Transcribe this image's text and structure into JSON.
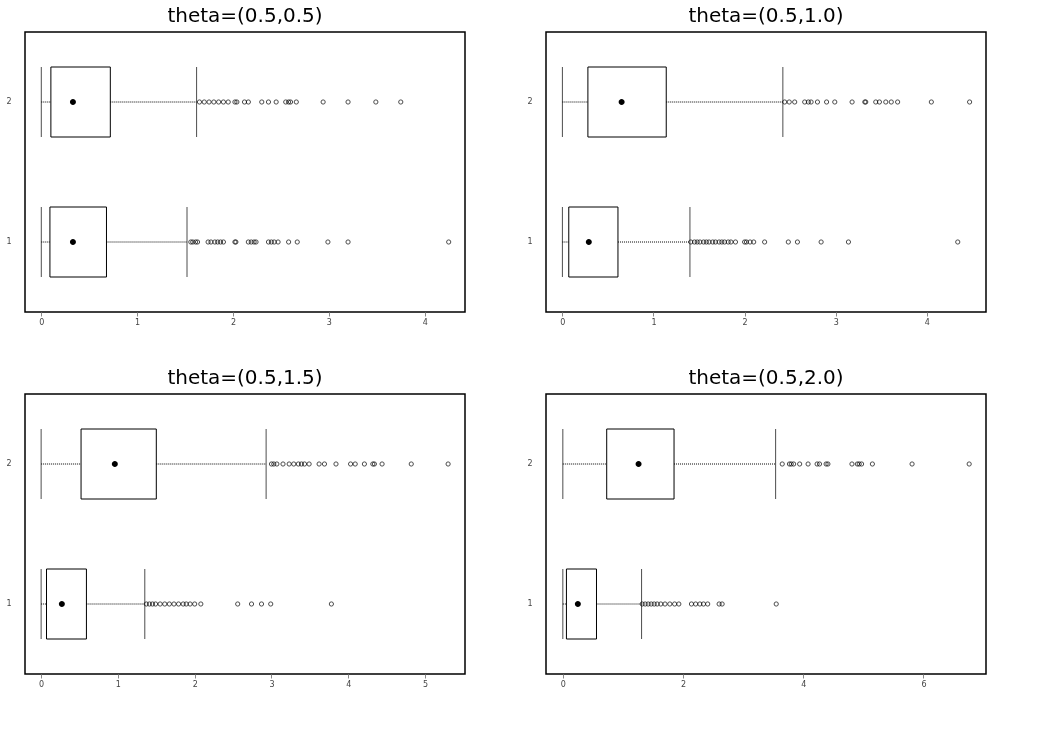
{
  "chart_data": [
    {
      "type": "box",
      "title": "theta=(0.5,0.5)",
      "orientation": "horizontal",
      "categories": [
        "2",
        "1"
      ],
      "xlim": [
        -0.17,
        4.42
      ],
      "xticks": [
        0,
        1,
        2,
        3,
        4
      ],
      "boxes": [
        {
          "low": 0,
          "q1": 0.1,
          "median": 0.33,
          "q3": 0.72,
          "high": 1.62,
          "outliers": [
            1.65,
            1.7,
            1.75,
            1.8,
            1.85,
            1.9,
            1.95,
            2.02,
            2.04,
            2.12,
            2.16,
            2.3,
            2.37,
            2.45,
            2.55,
            2.58,
            2.6,
            2.66,
            2.94,
            3.2,
            3.49,
            3.75
          ]
        },
        {
          "low": 0,
          "q1": 0.09,
          "median": 0.33,
          "q3": 0.68,
          "high": 1.52,
          "outliers": [
            1.56,
            1.58,
            1.61,
            1.63,
            1.74,
            1.77,
            1.81,
            1.84,
            1.87,
            1.9,
            2.02,
            2.03,
            2.16,
            2.19,
            2.22,
            2.24,
            2.37,
            2.4,
            2.43,
            2.47,
            2.58,
            2.67,
            2.99,
            3.2,
            4.25
          ]
        }
      ]
    },
    {
      "type": "box",
      "title": "theta=(0.5,1.0)",
      "orientation": "horizontal",
      "categories": [
        "2",
        "1"
      ],
      "xlim": [
        -0.18,
        4.65
      ],
      "xticks": [
        0,
        1,
        2,
        3,
        4
      ],
      "boxes": [
        {
          "low": 0,
          "q1": 0.28,
          "median": 0.65,
          "q3": 1.14,
          "high": 2.42,
          "outliers": [
            2.44,
            2.49,
            2.55,
            2.66,
            2.7,
            2.73,
            2.8,
            2.9,
            2.99,
            3.18,
            3.32,
            3.33,
            3.44,
            3.48,
            3.55,
            3.61,
            3.68,
            4.05,
            4.47
          ]
        },
        {
          "low": 0,
          "q1": 0.07,
          "median": 0.29,
          "q3": 0.61,
          "high": 1.4,
          "outliers": [
            1.41,
            1.45,
            1.48,
            1.51,
            1.55,
            1.58,
            1.61,
            1.65,
            1.68,
            1.72,
            1.75,
            1.78,
            1.82,
            1.85,
            1.9,
            2,
            2.02,
            2.06,
            2.1,
            2.22,
            2.48,
            2.58,
            2.84,
            3.14,
            4.34
          ]
        }
      ]
    },
    {
      "type": "box",
      "title": "theta=(0.5,1.5)",
      "orientation": "horizontal",
      "categories": [
        "2",
        "1"
      ],
      "xlim": [
        -0.21,
        5.52
      ],
      "xticks": [
        0,
        1,
        2,
        3,
        4,
        5
      ],
      "boxes": [
        {
          "low": 0,
          "q1": 0.52,
          "median": 0.96,
          "q3": 1.5,
          "high": 2.93,
          "outliers": [
            3,
            3.03,
            3.07,
            3.15,
            3.23,
            3.29,
            3.35,
            3.39,
            3.43,
            3.49,
            3.62,
            3.69,
            3.84,
            4.03,
            4.09,
            4.21,
            4.32,
            4.34,
            4.44,
            4.82,
            5.3
          ]
        },
        {
          "low": 0,
          "q1": 0.07,
          "median": 0.27,
          "q3": 0.59,
          "high": 1.35,
          "outliers": [
            1.37,
            1.41,
            1.45,
            1.49,
            1.55,
            1.61,
            1.67,
            1.73,
            1.79,
            1.85,
            1.89,
            1.94,
            2,
            2.08,
            2.56,
            2.74,
            2.87,
            2.99,
            3.78
          ]
        }
      ]
    },
    {
      "type": "box",
      "title": "theta=(0.5,2.0)",
      "orientation": "horizontal",
      "categories": [
        "2",
        "1"
      ],
      "xlim": [
        -0.28,
        7.04
      ],
      "xticks": [
        0,
        2,
        4,
        6
      ],
      "boxes": [
        {
          "low": 0,
          "q1": 0.73,
          "median": 1.26,
          "q3": 1.85,
          "high": 3.54,
          "outliers": [
            3.65,
            3.77,
            3.8,
            3.84,
            3.94,
            4.08,
            4.23,
            4.27,
            4.38,
            4.41,
            4.81,
            4.9,
            4.93,
            4.97,
            5.15,
            5.81,
            6.76
          ]
        },
        {
          "low": 0,
          "q1": 0.06,
          "median": 0.25,
          "q3": 0.56,
          "high": 1.31,
          "outliers": [
            1.32,
            1.37,
            1.42,
            1.47,
            1.52,
            1.57,
            1.63,
            1.7,
            1.78,
            1.86,
            1.93,
            2.14,
            2.21,
            2.28,
            2.34,
            2.41,
            2.6,
            2.65,
            3.55
          ]
        }
      ]
    }
  ]
}
